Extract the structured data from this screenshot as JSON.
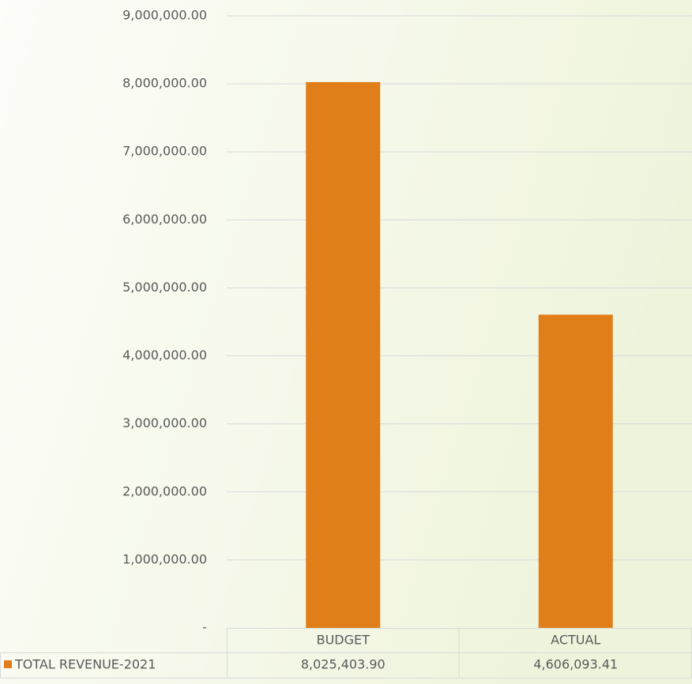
{
  "chart_data": {
    "type": "bar",
    "categories": [
      "BUDGET",
      "ACTUAL"
    ],
    "series": [
      {
        "name": "TOTAL REVENUE-2021",
        "color": "#e07f1a",
        "values": [
          8025403.9,
          4606093.41
        ],
        "value_labels": [
          "8,025,403.90",
          "4,606,093.41"
        ]
      }
    ],
    "ylim": [
      0,
      9000000
    ],
    "yticks": [
      {
        "value": 0,
        "label": "-"
      },
      {
        "value": 1000000,
        "label": "1,000,000.00"
      },
      {
        "value": 2000000,
        "label": "2,000,000.00"
      },
      {
        "value": 3000000,
        "label": "3,000,000.00"
      },
      {
        "value": 4000000,
        "label": "4,000,000.00"
      },
      {
        "value": 5000000,
        "label": "5,000,000.00"
      },
      {
        "value": 6000000,
        "label": "6,000,000.00"
      },
      {
        "value": 7000000,
        "label": "7,000,000.00"
      },
      {
        "value": 8000000,
        "label": "8,000,000.00"
      },
      {
        "value": 9000000,
        "label": "9,000,000.00"
      }
    ],
    "grid": true
  }
}
